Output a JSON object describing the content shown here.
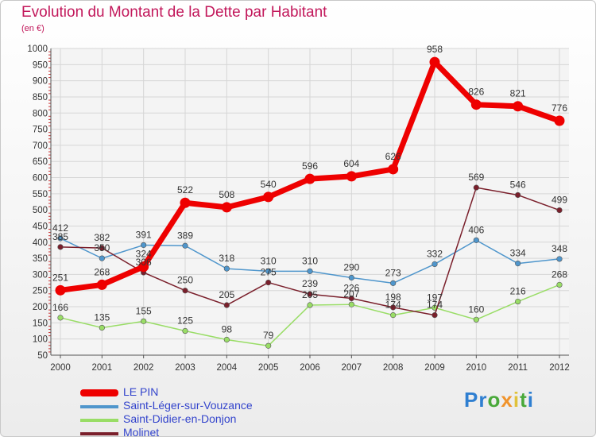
{
  "title": "Evolution du Montant de la Dette par Habitant",
  "subtitle": "(en €)",
  "logo_text": "Proxiti",
  "chart_data": {
    "type": "line",
    "x": [
      "2000",
      "2001",
      "2002",
      "2003",
      "2004",
      "2005",
      "2006",
      "2007",
      "2008",
      "2009",
      "2010",
      "2011",
      "2012"
    ],
    "ylim": [
      50,
      1000
    ],
    "yticks": [
      50,
      100,
      150,
      200,
      250,
      300,
      350,
      400,
      450,
      500,
      550,
      600,
      650,
      700,
      750,
      800,
      850,
      900,
      950,
      1000
    ],
    "grid": true,
    "legend_position": "bottom-left",
    "series": [
      {
        "name": "LE PIN",
        "color": "#ee0000",
        "values": [
          251,
          268,
          324,
          522,
          508,
          540,
          596,
          604,
          626,
          958,
          826,
          821,
          776
        ]
      },
      {
        "name": "Saint-Léger-sur-Vouzance",
        "color": "#4f96cc",
        "values": [
          412,
          350,
          391,
          389,
          318,
          310,
          310,
          290,
          273,
          332,
          406,
          334,
          348
        ]
      },
      {
        "name": "Saint-Didier-en-Donjon",
        "color": "#99dd66",
        "values": [
          166,
          135,
          155,
          125,
          98,
          79,
          205,
          207,
          174,
          197,
          160,
          216,
          268
        ]
      },
      {
        "name": "Molinet",
        "color": "#7a1f2b",
        "values": [
          385,
          382,
          306,
          250,
          205,
          275,
          239,
          226,
          198,
          174,
          569,
          546,
          499
        ]
      }
    ]
  }
}
